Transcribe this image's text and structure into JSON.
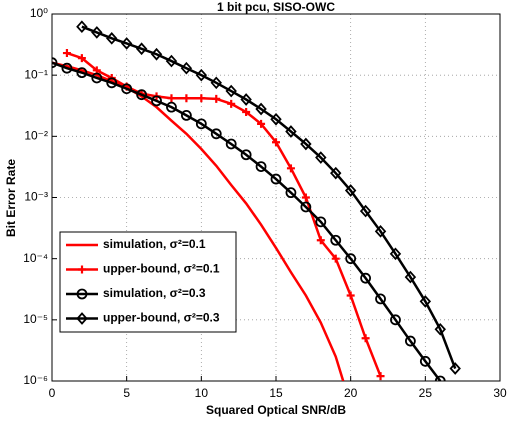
{
  "chart_data": {
    "type": "line",
    "title": "1 bit pcu, SISO-OWC",
    "xlabel": "Squared Optical SNR/dB",
    "ylabel": "Bit Error Rate",
    "xlim": [
      0,
      30
    ],
    "xticks": [
      0,
      5,
      10,
      15,
      20,
      25,
      30
    ],
    "ylim": [
      1e-06,
      1
    ],
    "yscale": "log",
    "yticks": [
      {
        "value": 1e-06,
        "label": "10⁻⁶"
      },
      {
        "value": 1e-05,
        "label": "10⁻⁵"
      },
      {
        "value": 0.0001,
        "label": "10⁻⁴"
      },
      {
        "value": 0.001,
        "label": "10⁻³"
      },
      {
        "value": 0.01,
        "label": "10⁻²"
      },
      {
        "value": 0.1,
        "label": "10⁻¹"
      },
      {
        "value": 1,
        "label": "10⁰"
      }
    ],
    "grid": true,
    "legend": "lower left",
    "series": [
      {
        "name": "simulation, σ²=0.1",
        "color": "#ff0000",
        "marker": "none",
        "x": [
          0,
          1,
          2,
          3,
          4,
          5,
          6,
          7,
          8,
          9,
          10,
          11,
          12,
          13,
          14,
          15,
          16,
          17,
          18,
          19,
          19.5
        ],
        "values": [
          0.16,
          0.14,
          0.12,
          0.1,
          0.08,
          0.063,
          0.045,
          0.03,
          0.018,
          0.011,
          0.0062,
          0.0033,
          0.0016,
          0.0008,
          0.00036,
          0.00015,
          6e-05,
          2.5e-05,
          9e-06,
          2.5e-06,
          1e-06
        ]
      },
      {
        "name": "upper-bound, σ²=0.1",
        "color": "#ff0000",
        "marker": "plus",
        "x": [
          1,
          2,
          3,
          4,
          5,
          6,
          7,
          8,
          9,
          10,
          11,
          12,
          13,
          14,
          15,
          16,
          17,
          18,
          19,
          20,
          21,
          22
        ],
        "values": [
          0.23,
          0.19,
          0.12,
          0.09,
          0.065,
          0.05,
          0.045,
          0.042,
          0.042,
          0.042,
          0.041,
          0.034,
          0.025,
          0.016,
          0.008,
          0.003,
          0.001,
          0.0002,
          0.0001,
          2.5e-05,
          5e-06,
          1.2e-06
        ]
      },
      {
        "name": "simulation, σ²=0.3",
        "color": "#000000",
        "marker": "circle",
        "x": [
          0,
          1,
          2,
          3,
          4,
          5,
          6,
          7,
          8,
          9,
          10,
          11,
          12,
          13,
          14,
          15,
          16,
          17,
          18,
          19,
          20,
          21,
          22,
          23,
          24,
          25,
          26
        ],
        "values": [
          0.16,
          0.13,
          0.11,
          0.09,
          0.075,
          0.06,
          0.048,
          0.038,
          0.03,
          0.022,
          0.016,
          0.011,
          0.0075,
          0.005,
          0.0032,
          0.002,
          0.0012,
          0.0007,
          0.0004,
          0.0002,
          0.0001,
          4.8e-05,
          2.2e-05,
          1e-05,
          4.5e-06,
          2.1e-06,
          1e-06
        ]
      },
      {
        "name": "upper-bound, σ²=0.3",
        "color": "#000000",
        "marker": "diamond",
        "x": [
          2,
          3,
          4,
          5,
          6,
          7,
          8,
          9,
          10,
          11,
          12,
          13,
          14,
          15,
          16,
          17,
          18,
          19,
          20,
          21,
          22,
          23,
          24,
          25,
          26,
          27
        ],
        "values": [
          0.62,
          0.5,
          0.4,
          0.33,
          0.27,
          0.22,
          0.17,
          0.13,
          0.1,
          0.075,
          0.055,
          0.04,
          0.028,
          0.019,
          0.012,
          0.0075,
          0.0045,
          0.0025,
          0.0013,
          0.0006,
          0.00028,
          0.00012,
          5e-05,
          2e-05,
          7e-06,
          1.6e-06
        ]
      }
    ]
  }
}
